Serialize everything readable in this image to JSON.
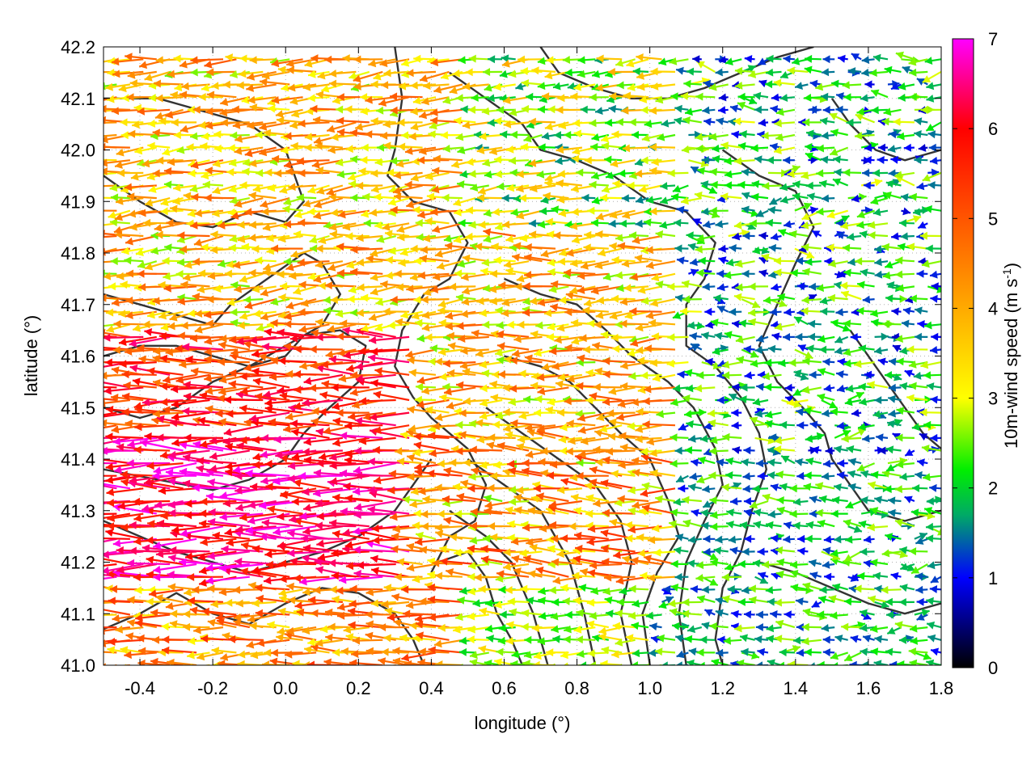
{
  "chart_data": {
    "type": "vector-field",
    "xlabel": "longitude (°)",
    "ylabel": "latitude (°)",
    "xlim": [
      -0.5,
      1.8
    ],
    "ylim": [
      41.0,
      42.2
    ],
    "x_ticks": [
      "-0.4",
      "-0.2",
      "0.0",
      "0.2",
      "0.4",
      "0.6",
      "0.8",
      "1.0",
      "1.2",
      "1.4",
      "1.6",
      "1.8"
    ],
    "x_tick_values": [
      -0.4,
      -0.2,
      0.0,
      0.2,
      0.4,
      0.6,
      0.8,
      1.0,
      1.2,
      1.4,
      1.6,
      1.8
    ],
    "y_ticks": [
      "41.0",
      "41.1",
      "41.2",
      "41.3",
      "41.4",
      "41.5",
      "41.6",
      "41.7",
      "41.8",
      "41.9",
      "42.0",
      "42.1",
      "42.2"
    ],
    "y_tick_values": [
      41.0,
      41.1,
      41.2,
      41.3,
      41.4,
      41.5,
      41.6,
      41.7,
      41.8,
      41.9,
      42.0,
      42.1,
      42.2
    ],
    "grid": true,
    "colorbar": {
      "label": "10m-wind speed (m s",
      "label_sup": "-1",
      "label_end": ")",
      "range": [
        0,
        7
      ],
      "ticks": [
        "0",
        "1",
        "2",
        "3",
        "4",
        "5",
        "6",
        "7"
      ],
      "tick_values": [
        0,
        1,
        2,
        3,
        4,
        5,
        6,
        7
      ],
      "palette": [
        "#000000",
        "#0000ff",
        "#00aa66",
        "#00ee00",
        "#ffff00",
        "#ffaa00",
        "#ff0000",
        "#ff00ff"
      ],
      "palette_stops": [
        0,
        1,
        1.7,
        2.2,
        3,
        4,
        6,
        7
      ]
    },
    "contour_color": "#333333",
    "series": [
      {
        "kind": "wind-vectors",
        "description_units": "speed in m/s, vectors mostly from the east (pointing west)",
        "regions": [
          {
            "lon": [
              -0.5,
              0.35
            ],
            "lat": [
              41.15,
              41.45
            ],
            "speed": [
              5.5,
              7.0
            ],
            "dir_deg": 180
          },
          {
            "lon": [
              -0.5,
              0.35
            ],
            "lat": [
              41.45,
              41.65
            ],
            "speed": [
              4.5,
              6.5
            ],
            "dir_deg": 180
          },
          {
            "lon": [
              -0.5,
              0.5
            ],
            "lat": [
              41.65,
              42.2
            ],
            "speed": [
              2.5,
              5.0
            ],
            "dir_deg": 185
          },
          {
            "lon": [
              -0.5,
              0.5
            ],
            "lat": [
              41.0,
              41.15
            ],
            "speed": [
              3.0,
              5.5
            ],
            "dir_deg": 180
          },
          {
            "lon": [
              0.35,
              1.1
            ],
            "lat": [
              41.15,
              41.45
            ],
            "speed": [
              2.5,
              5.5
            ],
            "dir_deg": 178
          },
          {
            "lon": [
              0.4,
              1.1
            ],
            "lat": [
              41.45,
              41.85
            ],
            "speed": [
              2.5,
              5.0
            ],
            "dir_deg": 182
          },
          {
            "lon": [
              0.5,
              1.1
            ],
            "lat": [
              41.85,
              42.2
            ],
            "speed": [
              1.5,
              4.0
            ],
            "dir_deg": 185
          },
          {
            "lon": [
              0.5,
              1.0
            ],
            "lat": [
              41.0,
              41.15
            ],
            "speed": [
              2.0,
              3.5
            ],
            "dir_deg": 180
          },
          {
            "lon": [
              1.1,
              1.8
            ],
            "lat": [
              41.4,
              42.2
            ],
            "speed": [
              0.8,
              3.0
            ],
            "dir_deg": 180
          },
          {
            "lon": [
              1.0,
              1.8
            ],
            "lat": [
              41.0,
              41.4
            ],
            "speed": [
              1.0,
              2.8
            ],
            "dir_deg": 175
          }
        ]
      },
      {
        "kind": "terrain-contours",
        "lines": [
          [
            [
              -0.5,
              41.95
            ],
            [
              -0.4,
              41.9
            ],
            [
              -0.3,
              41.86
            ],
            [
              -0.2,
              41.85
            ],
            [
              -0.1,
              41.88
            ],
            [
              0.0,
              41.86
            ],
            [
              0.05,
              41.9
            ],
            [
              0.0,
              42.0
            ],
            [
              -0.1,
              42.05
            ],
            [
              -0.25,
              42.08
            ],
            [
              -0.35,
              42.1
            ],
            [
              -0.5,
              42.1
            ]
          ],
          [
            [
              -0.5,
              41.72
            ],
            [
              -0.4,
              41.7
            ],
            [
              -0.3,
              41.68
            ],
            [
              -0.2,
              41.66
            ],
            [
              -0.15,
              41.7
            ],
            [
              -0.05,
              41.75
            ],
            [
              0.05,
              41.8
            ],
            [
              0.1,
              41.78
            ],
            [
              0.15,
              41.72
            ],
            [
              0.1,
              41.66
            ],
            [
              0.0,
              41.62
            ],
            [
              -0.1,
              41.58
            ],
            [
              -0.2,
              41.6
            ],
            [
              -0.3,
              41.62
            ],
            [
              -0.4,
              41.62
            ],
            [
              -0.5,
              41.6
            ]
          ],
          [
            [
              -0.5,
              41.5
            ],
            [
              -0.4,
              41.48
            ],
            [
              -0.3,
              41.5
            ],
            [
              -0.2,
              41.55
            ],
            [
              -0.1,
              41.58
            ],
            [
              0.0,
              41.6
            ],
            [
              0.05,
              41.64
            ],
            [
              0.15,
              41.65
            ],
            [
              0.22,
              41.62
            ],
            [
              0.2,
              41.55
            ],
            [
              0.12,
              41.5
            ],
            [
              0.05,
              41.45
            ],
            [
              0.0,
              41.4
            ],
            [
              -0.1,
              41.36
            ],
            [
              -0.2,
              41.34
            ],
            [
              -0.35,
              41.36
            ],
            [
              -0.5,
              41.38
            ]
          ],
          [
            [
              -0.5,
              41.28
            ],
            [
              -0.4,
              41.25
            ],
            [
              -0.3,
              41.22
            ],
            [
              -0.2,
              41.2
            ],
            [
              -0.1,
              41.18
            ],
            [
              0.0,
              41.2
            ],
            [
              0.1,
              41.22
            ],
            [
              0.2,
              41.25
            ],
            [
              0.3,
              41.3
            ],
            [
              0.35,
              41.35
            ],
            [
              0.4,
              41.4
            ]
          ],
          [
            [
              -0.5,
              41.07
            ],
            [
              -0.4,
              41.1
            ],
            [
              -0.3,
              41.14
            ],
            [
              -0.2,
              41.1
            ],
            [
              -0.1,
              41.08
            ],
            [
              0.0,
              41.12
            ],
            [
              0.1,
              41.15
            ],
            [
              0.2,
              41.14
            ],
            [
              0.3,
              41.1
            ],
            [
              0.35,
              41.05
            ],
            [
              0.38,
              41.0
            ]
          ],
          [
            [
              0.3,
              42.2
            ],
            [
              0.32,
              42.1
            ],
            [
              0.3,
              42.0
            ],
            [
              0.28,
              41.95
            ],
            [
              0.35,
              41.9
            ],
            [
              0.45,
              41.88
            ],
            [
              0.5,
              41.82
            ],
            [
              0.45,
              41.75
            ],
            [
              0.38,
              41.72
            ],
            [
              0.32,
              41.65
            ],
            [
              0.3,
              41.58
            ],
            [
              0.35,
              41.52
            ],
            [
              0.4,
              41.48
            ],
            [
              0.45,
              41.45
            ],
            [
              0.5,
              41.42
            ],
            [
              0.55,
              41.35
            ],
            [
              0.52,
              41.28
            ],
            [
              0.45,
              41.25
            ],
            [
              0.4,
              41.18
            ]
          ],
          [
            [
              0.42,
              41.2
            ],
            [
              0.5,
              41.22
            ],
            [
              0.55,
              41.17
            ],
            [
              0.58,
              41.1
            ],
            [
              0.62,
              41.05
            ],
            [
              0.65,
              41.0
            ]
          ],
          [
            [
              0.45,
              41.3
            ],
            [
              0.55,
              41.25
            ],
            [
              0.62,
              41.2
            ],
            [
              0.68,
              41.1
            ],
            [
              0.72,
              41.0
            ]
          ],
          [
            [
              0.5,
              41.4
            ],
            [
              0.6,
              41.35
            ],
            [
              0.7,
              41.3
            ],
            [
              0.78,
              41.2
            ],
            [
              0.82,
              41.1
            ],
            [
              0.85,
              41.0
            ]
          ],
          [
            [
              0.55,
              41.5
            ],
            [
              0.65,
              41.45
            ],
            [
              0.75,
              41.4
            ],
            [
              0.85,
              41.35
            ],
            [
              0.92,
              41.28
            ],
            [
              0.95,
              41.2
            ],
            [
              0.92,
              41.1
            ],
            [
              0.95,
              41.0
            ]
          ],
          [
            [
              0.6,
              41.6
            ],
            [
              0.7,
              41.58
            ],
            [
              0.78,
              41.55
            ],
            [
              0.85,
              41.5
            ],
            [
              0.92,
              41.45
            ],
            [
              1.0,
              41.4
            ],
            [
              1.05,
              41.32
            ],
            [
              1.08,
              41.25
            ],
            [
              1.02,
              41.18
            ],
            [
              0.98,
              41.1
            ],
            [
              1.0,
              41.0
            ]
          ],
          [
            [
              0.6,
              41.75
            ],
            [
              0.7,
              41.72
            ],
            [
              0.8,
              41.7
            ],
            [
              0.88,
              41.65
            ],
            [
              0.95,
              41.6
            ],
            [
              1.05,
              41.55
            ],
            [
              1.12,
              41.5
            ],
            [
              1.18,
              41.42
            ],
            [
              1.2,
              41.35
            ],
            [
              1.15,
              41.28
            ],
            [
              1.1,
              41.2
            ],
            [
              1.08,
              41.1
            ],
            [
              1.1,
              41.0
            ]
          ],
          [
            [
              0.45,
              42.15
            ],
            [
              0.55,
              42.1
            ],
            [
              0.65,
              42.05
            ],
            [
              0.7,
              42.0
            ],
            [
              0.8,
              41.98
            ],
            [
              0.9,
              41.95
            ],
            [
              1.0,
              41.9
            ],
            [
              1.1,
              41.88
            ],
            [
              1.18,
              41.82
            ],
            [
              1.15,
              41.75
            ],
            [
              1.1,
              41.7
            ],
            [
              1.1,
              41.62
            ],
            [
              1.18,
              41.58
            ],
            [
              1.25,
              41.52
            ],
            [
              1.3,
              41.45
            ],
            [
              1.32,
              41.38
            ],
            [
              1.28,
              41.3
            ],
            [
              1.25,
              41.22
            ],
            [
              1.2,
              41.15
            ],
            [
              1.18,
              41.05
            ],
            [
              1.2,
              41.0
            ]
          ],
          [
            [
              0.7,
              42.2
            ],
            [
              0.75,
              42.15
            ],
            [
              0.85,
              42.12
            ],
            [
              0.95,
              42.1
            ],
            [
              1.05,
              42.1
            ],
            [
              1.15,
              42.12
            ],
            [
              1.25,
              42.15
            ],
            [
              1.35,
              42.18
            ],
            [
              1.45,
              42.2
            ]
          ],
          [
            [
              1.2,
              42.0
            ],
            [
              1.3,
              41.95
            ],
            [
              1.4,
              41.92
            ],
            [
              1.45,
              41.85
            ],
            [
              1.4,
              41.78
            ],
            [
              1.35,
              41.7
            ],
            [
              1.3,
              41.62
            ],
            [
              1.35,
              41.55
            ],
            [
              1.42,
              41.5
            ],
            [
              1.48,
              41.45
            ],
            [
              1.5,
              41.4
            ],
            [
              1.55,
              41.35
            ],
            [
              1.6,
              41.3
            ],
            [
              1.7,
              41.28
            ],
            [
              1.8,
              41.3
            ]
          ],
          [
            [
              1.5,
              42.1
            ],
            [
              1.55,
              42.05
            ],
            [
              1.62,
              42.0
            ],
            [
              1.7,
              41.98
            ],
            [
              1.8,
              42.0
            ]
          ],
          [
            [
              1.55,
              41.65
            ],
            [
              1.6,
              41.6
            ],
            [
              1.65,
              41.55
            ],
            [
              1.7,
              41.5
            ],
            [
              1.75,
              41.45
            ],
            [
              1.8,
              41.42
            ]
          ],
          [
            [
              1.3,
              41.2
            ],
            [
              1.4,
              41.18
            ],
            [
              1.5,
              41.15
            ],
            [
              1.6,
              41.12
            ],
            [
              1.7,
              41.1
            ],
            [
              1.8,
              41.12
            ]
          ]
        ]
      }
    ]
  }
}
